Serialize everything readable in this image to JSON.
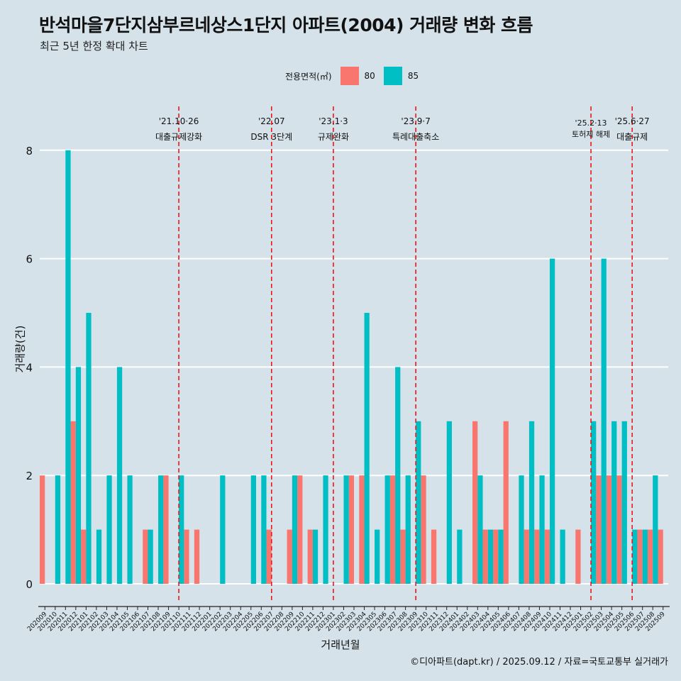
{
  "title": "반석마을7단지삼부르네상스1단지 아파트(2004) 거래량 변화 흐름",
  "subtitle": "최근 5년 한정 확대 차트",
  "legend": {
    "title": "전용면적(㎡)",
    "items": [
      {
        "label": "80",
        "color": "#f8766d"
      },
      {
        "label": "85",
        "color": "#00bfc4"
      }
    ]
  },
  "caption": "©디아파트(dapt.kr) / 2025.09.12 / 자료=국토교통부 실거래가",
  "chart_data": {
    "type": "bar",
    "title": "반석마을7단지삼부르네상스1단지 아파트(2004) 거래량 변화 흐름",
    "xlabel": "거래년월",
    "ylabel": "거래량(건)",
    "ylim": [
      0,
      8.5
    ],
    "yticks": [
      0,
      2,
      4,
      6,
      8
    ],
    "categories": [
      "202009",
      "202010",
      "202011",
      "202012",
      "202101",
      "202102",
      "202103",
      "202104",
      "202105",
      "202106",
      "202107",
      "202108",
      "202109",
      "202110",
      "202111",
      "202112",
      "202201",
      "202202",
      "202203",
      "202204",
      "202205",
      "202206",
      "202207",
      "202208",
      "202209",
      "202210",
      "202211",
      "202212",
      "202301",
      "202302",
      "202303",
      "202304",
      "202305",
      "202306",
      "202307",
      "202308",
      "202309",
      "202310",
      "202311",
      "202312",
      "202401",
      "202402",
      "202403",
      "202404",
      "202405",
      "202406",
      "202407",
      "202408",
      "202409",
      "202410",
      "202411",
      "202412",
      "202501",
      "202502",
      "202503",
      "202504",
      "202505",
      "202506",
      "202507",
      "202508",
      "202509"
    ],
    "series": [
      {
        "name": "80",
        "color": "#f8766d",
        "values": [
          2,
          0,
          0,
          3,
          1,
          0,
          0,
          0,
          0,
          0,
          1,
          0,
          2,
          0,
          1,
          1,
          0,
          0,
          0,
          0,
          0,
          0,
          1,
          0,
          1,
          2,
          1,
          0,
          0,
          0,
          2,
          2,
          0,
          0,
          2,
          1,
          0,
          2,
          1,
          0,
          0,
          0,
          3,
          1,
          1,
          3,
          0,
          1,
          1,
          1,
          0,
          0,
          1,
          0,
          2,
          2,
          2,
          0,
          1,
          1,
          1
        ]
      },
      {
        "name": "85",
        "color": "#00bfc4",
        "values": [
          0,
          2,
          8,
          4,
          5,
          1,
          2,
          4,
          2,
          0,
          1,
          2,
          0,
          2,
          0,
          0,
          0,
          2,
          0,
          0,
          2,
          2,
          0,
          0,
          2,
          0,
          1,
          2,
          0,
          2,
          0,
          5,
          1,
          2,
          4,
          2,
          3,
          0,
          0,
          3,
          1,
          0,
          2,
          1,
          1,
          0,
          2,
          3,
          2,
          6,
          1,
          0,
          0,
          3,
          6,
          3,
          3,
          1,
          1,
          2,
          0
        ]
      }
    ],
    "events": [
      {
        "position": 13,
        "date": "'21.10·26",
        "label": "대출규제강화"
      },
      {
        "position": 22,
        "date": "'22.07",
        "label": "DSR 3단계"
      },
      {
        "position": 28,
        "date": "'23.1·3",
        "label": "규제완화"
      },
      {
        "position": 36,
        "date": "'23.9·7",
        "label": "특례대출축소"
      },
      {
        "position": 53,
        "date": "'25.2·13",
        "label": "토허제 해제"
      },
      {
        "position": 57,
        "date": "'25.6·27",
        "label": "대출규제"
      }
    ]
  }
}
